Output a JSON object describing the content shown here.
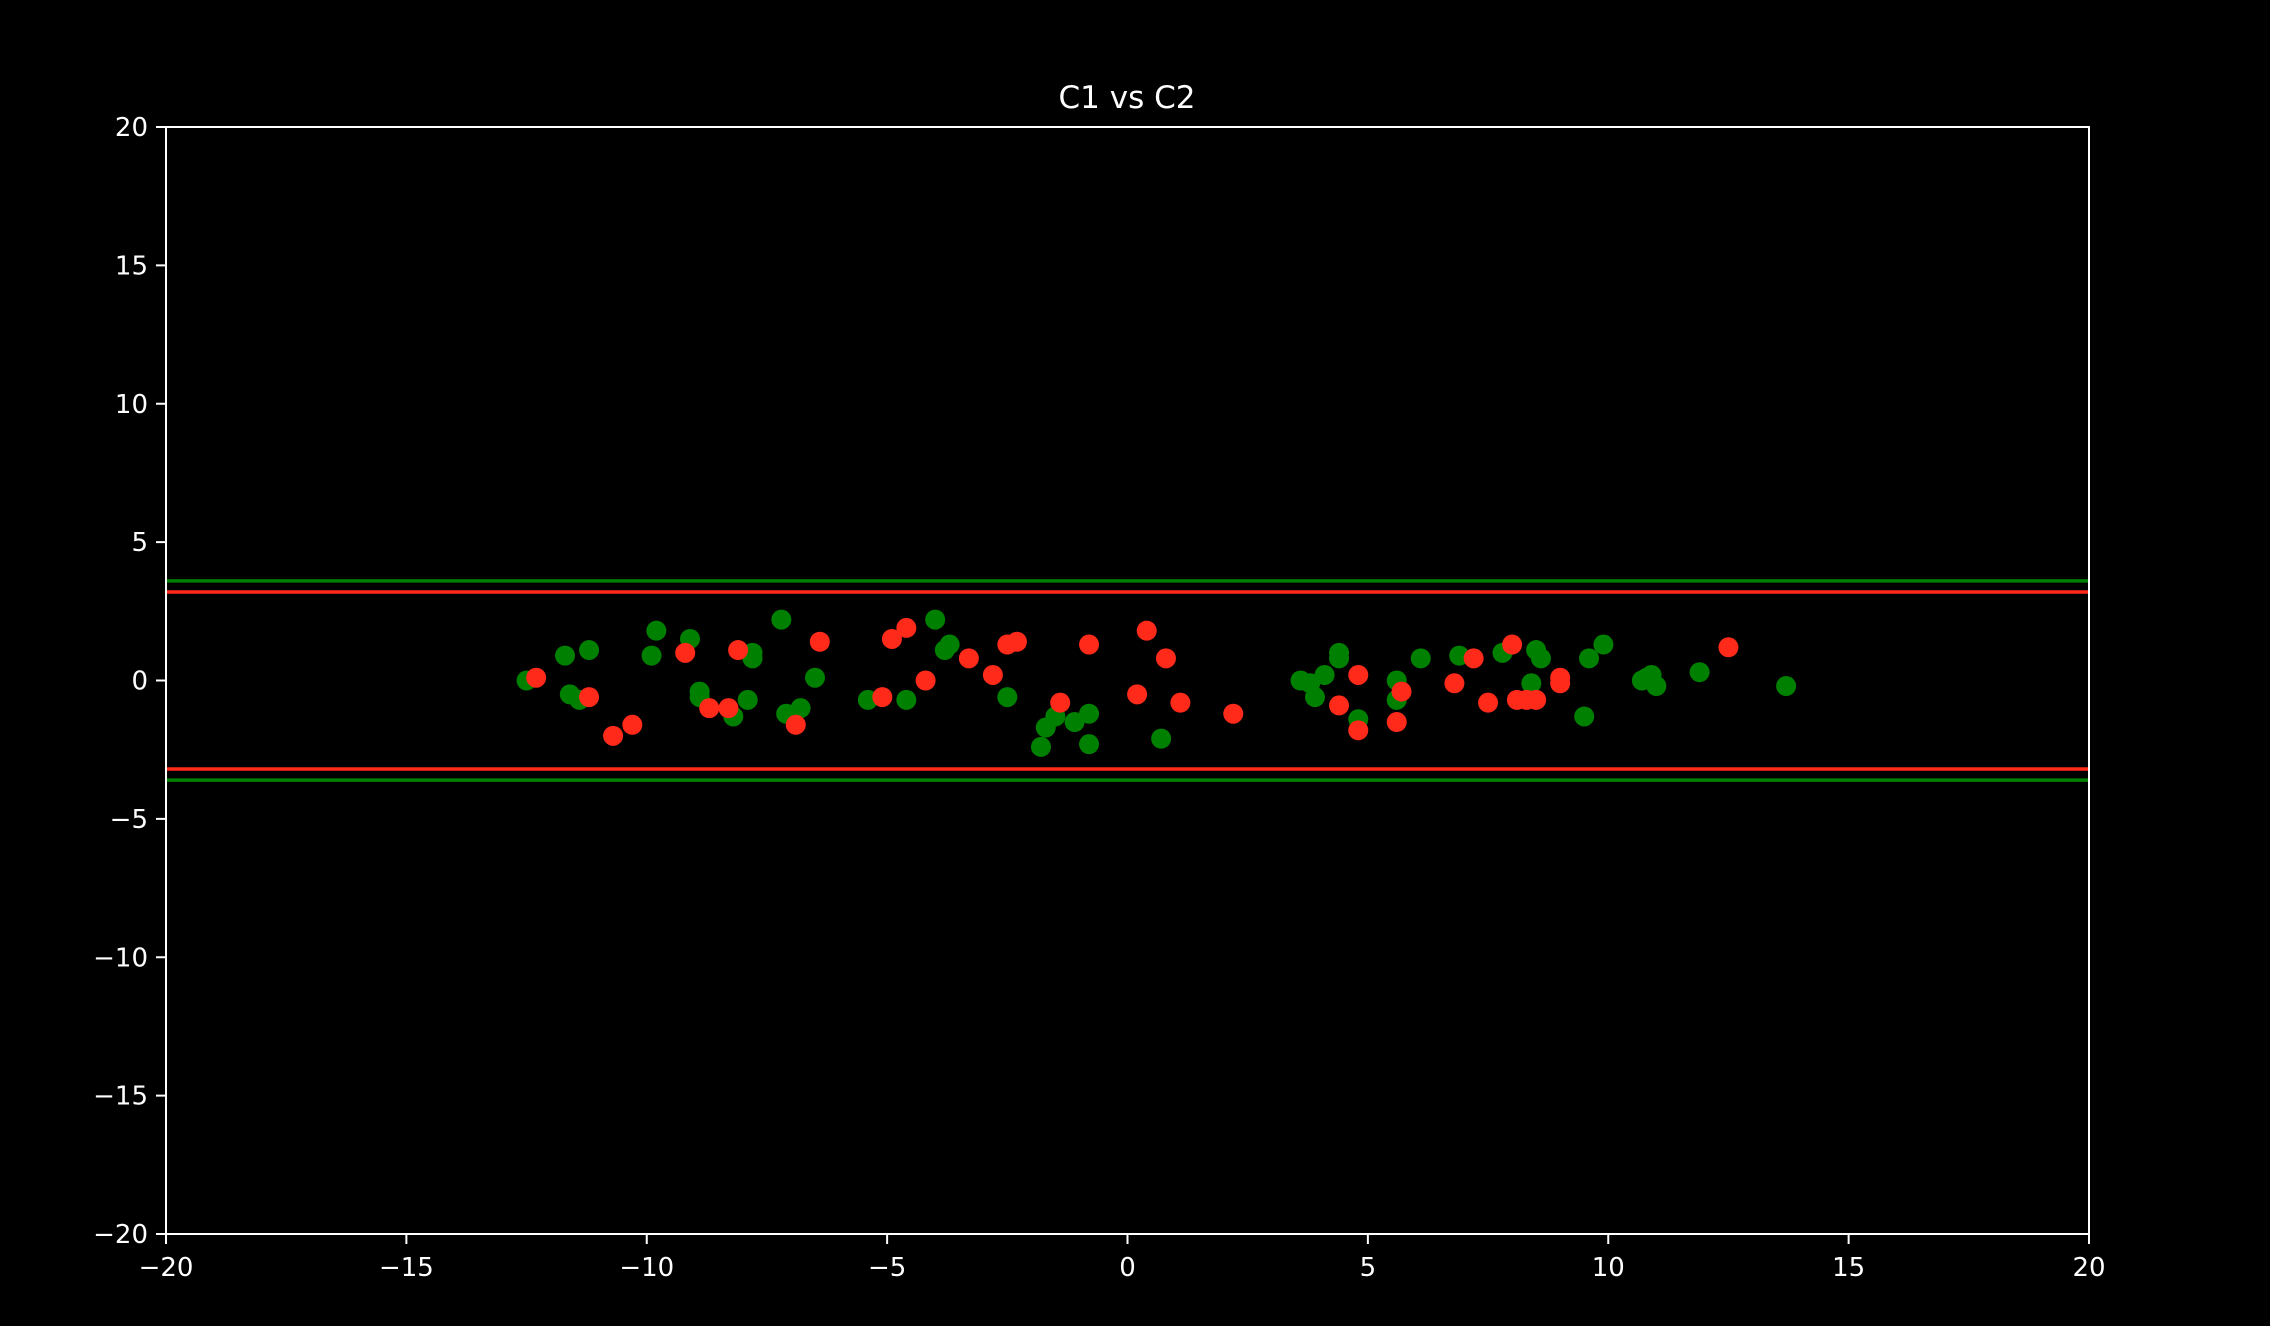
{
  "chart_data": {
    "type": "scatter",
    "title": "C1 vs C2",
    "xlabel": "",
    "ylabel": "",
    "xlim": [
      -20,
      20
    ],
    "ylim": [
      -20,
      20
    ],
    "x_ticks": [
      -20,
      -15,
      -10,
      -5,
      0,
      5,
      10,
      15,
      20
    ],
    "y_ticks": [
      -20,
      -15,
      -10,
      -5,
      0,
      5,
      10,
      15,
      20
    ],
    "x_tick_labels": [
      "−20",
      "−15",
      "−10",
      "−5",
      "0",
      "5",
      "10",
      "15",
      "20"
    ],
    "y_tick_labels": [
      "−20",
      "−15",
      "−10",
      "−5",
      "0",
      "5",
      "10",
      "15",
      "20"
    ],
    "grid": false,
    "background_color": "#000000",
    "axis_color": "#ffffff",
    "series": [
      {
        "color": "#008000",
        "points": [
          [
            -12.5,
            0.0
          ],
          [
            -11.7,
            0.9
          ],
          [
            -11.6,
            -0.5
          ],
          [
            -11.4,
            -0.7
          ],
          [
            -11.2,
            1.1
          ],
          [
            -9.8,
            1.8
          ],
          [
            -9.9,
            0.9
          ],
          [
            -9.1,
            1.5
          ],
          [
            -8.9,
            -0.4
          ],
          [
            -8.9,
            -0.6
          ],
          [
            -8.2,
            -1.3
          ],
          [
            -7.8,
            1.0
          ],
          [
            -7.8,
            0.8
          ],
          [
            -7.9,
            -0.7
          ],
          [
            -7.2,
            2.2
          ],
          [
            -7.1,
            -1.2
          ],
          [
            -6.8,
            -1.0
          ],
          [
            -6.5,
            0.1
          ],
          [
            -5.4,
            -0.7
          ],
          [
            -4.6,
            -0.7
          ],
          [
            -4.0,
            2.2
          ],
          [
            -3.8,
            1.1
          ],
          [
            -3.7,
            1.3
          ],
          [
            -2.5,
            -0.6
          ],
          [
            -1.8,
            -2.4
          ],
          [
            -1.7,
            -1.7
          ],
          [
            -1.5,
            -1.3
          ],
          [
            -1.1,
            -1.5
          ],
          [
            -0.8,
            -2.3
          ],
          [
            -0.8,
            -1.2
          ],
          [
            0.7,
            -2.1
          ],
          [
            3.6,
            0.0
          ],
          [
            3.8,
            -0.1
          ],
          [
            3.9,
            -0.6
          ],
          [
            4.1,
            0.2
          ],
          [
            4.4,
            0.8
          ],
          [
            4.4,
            1.0
          ],
          [
            4.8,
            -1.4
          ],
          [
            5.6,
            0.0
          ],
          [
            5.6,
            -0.7
          ],
          [
            6.1,
            0.8
          ],
          [
            6.9,
            0.9
          ],
          [
            7.8,
            1.0
          ],
          [
            8.4,
            -0.1
          ],
          [
            8.5,
            1.1
          ],
          [
            8.6,
            0.8
          ],
          [
            9.5,
            -1.3
          ],
          [
            9.6,
            0.8
          ],
          [
            9.9,
            1.3
          ],
          [
            10.7,
            0.0
          ],
          [
            10.8,
            0.1
          ],
          [
            10.9,
            0.2
          ],
          [
            11.0,
            -0.2
          ],
          [
            11.9,
            0.3
          ],
          [
            13.7,
            -0.2
          ]
        ]
      },
      {
        "color": "#ff2a1a",
        "points": [
          [
            -12.3,
            0.1
          ],
          [
            -11.2,
            -0.6
          ],
          [
            -10.7,
            -2.0
          ],
          [
            -10.3,
            -1.6
          ],
          [
            -9.2,
            1.0
          ],
          [
            -8.7,
            -1.0
          ],
          [
            -8.3,
            -1.0
          ],
          [
            -8.1,
            1.1
          ],
          [
            -6.9,
            -1.6
          ],
          [
            -6.4,
            1.4
          ],
          [
            -5.1,
            -0.6
          ],
          [
            -4.9,
            1.5
          ],
          [
            -4.6,
            1.9
          ],
          [
            -4.2,
            0.0
          ],
          [
            -3.3,
            0.8
          ],
          [
            -2.8,
            0.2
          ],
          [
            -2.5,
            1.3
          ],
          [
            -2.3,
            1.4
          ],
          [
            -1.4,
            -0.8
          ],
          [
            -0.8,
            1.3
          ],
          [
            0.2,
            -0.5
          ],
          [
            0.4,
            1.8
          ],
          [
            0.8,
            0.8
          ],
          [
            1.1,
            -0.8
          ],
          [
            2.2,
            -1.2
          ],
          [
            4.4,
            -0.9
          ],
          [
            4.8,
            0.2
          ],
          [
            4.8,
            -1.8
          ],
          [
            5.6,
            -1.5
          ],
          [
            5.7,
            -0.4
          ],
          [
            6.8,
            -0.1
          ],
          [
            7.2,
            0.8
          ],
          [
            7.5,
            -0.8
          ],
          [
            8.0,
            1.3
          ],
          [
            8.1,
            -0.7
          ],
          [
            8.3,
            -0.7
          ],
          [
            8.5,
            -0.7
          ],
          [
            9.0,
            0.1
          ],
          [
            9.0,
            -0.1
          ],
          [
            12.5,
            1.2
          ]
        ]
      }
    ],
    "hlines": [
      {
        "y": 3.6,
        "color": "#008000"
      },
      {
        "y": 3.2,
        "color": "#ff2a1a"
      },
      {
        "y": -3.2,
        "color": "#ff2a1a"
      },
      {
        "y": -3.6,
        "color": "#008000"
      }
    ]
  }
}
